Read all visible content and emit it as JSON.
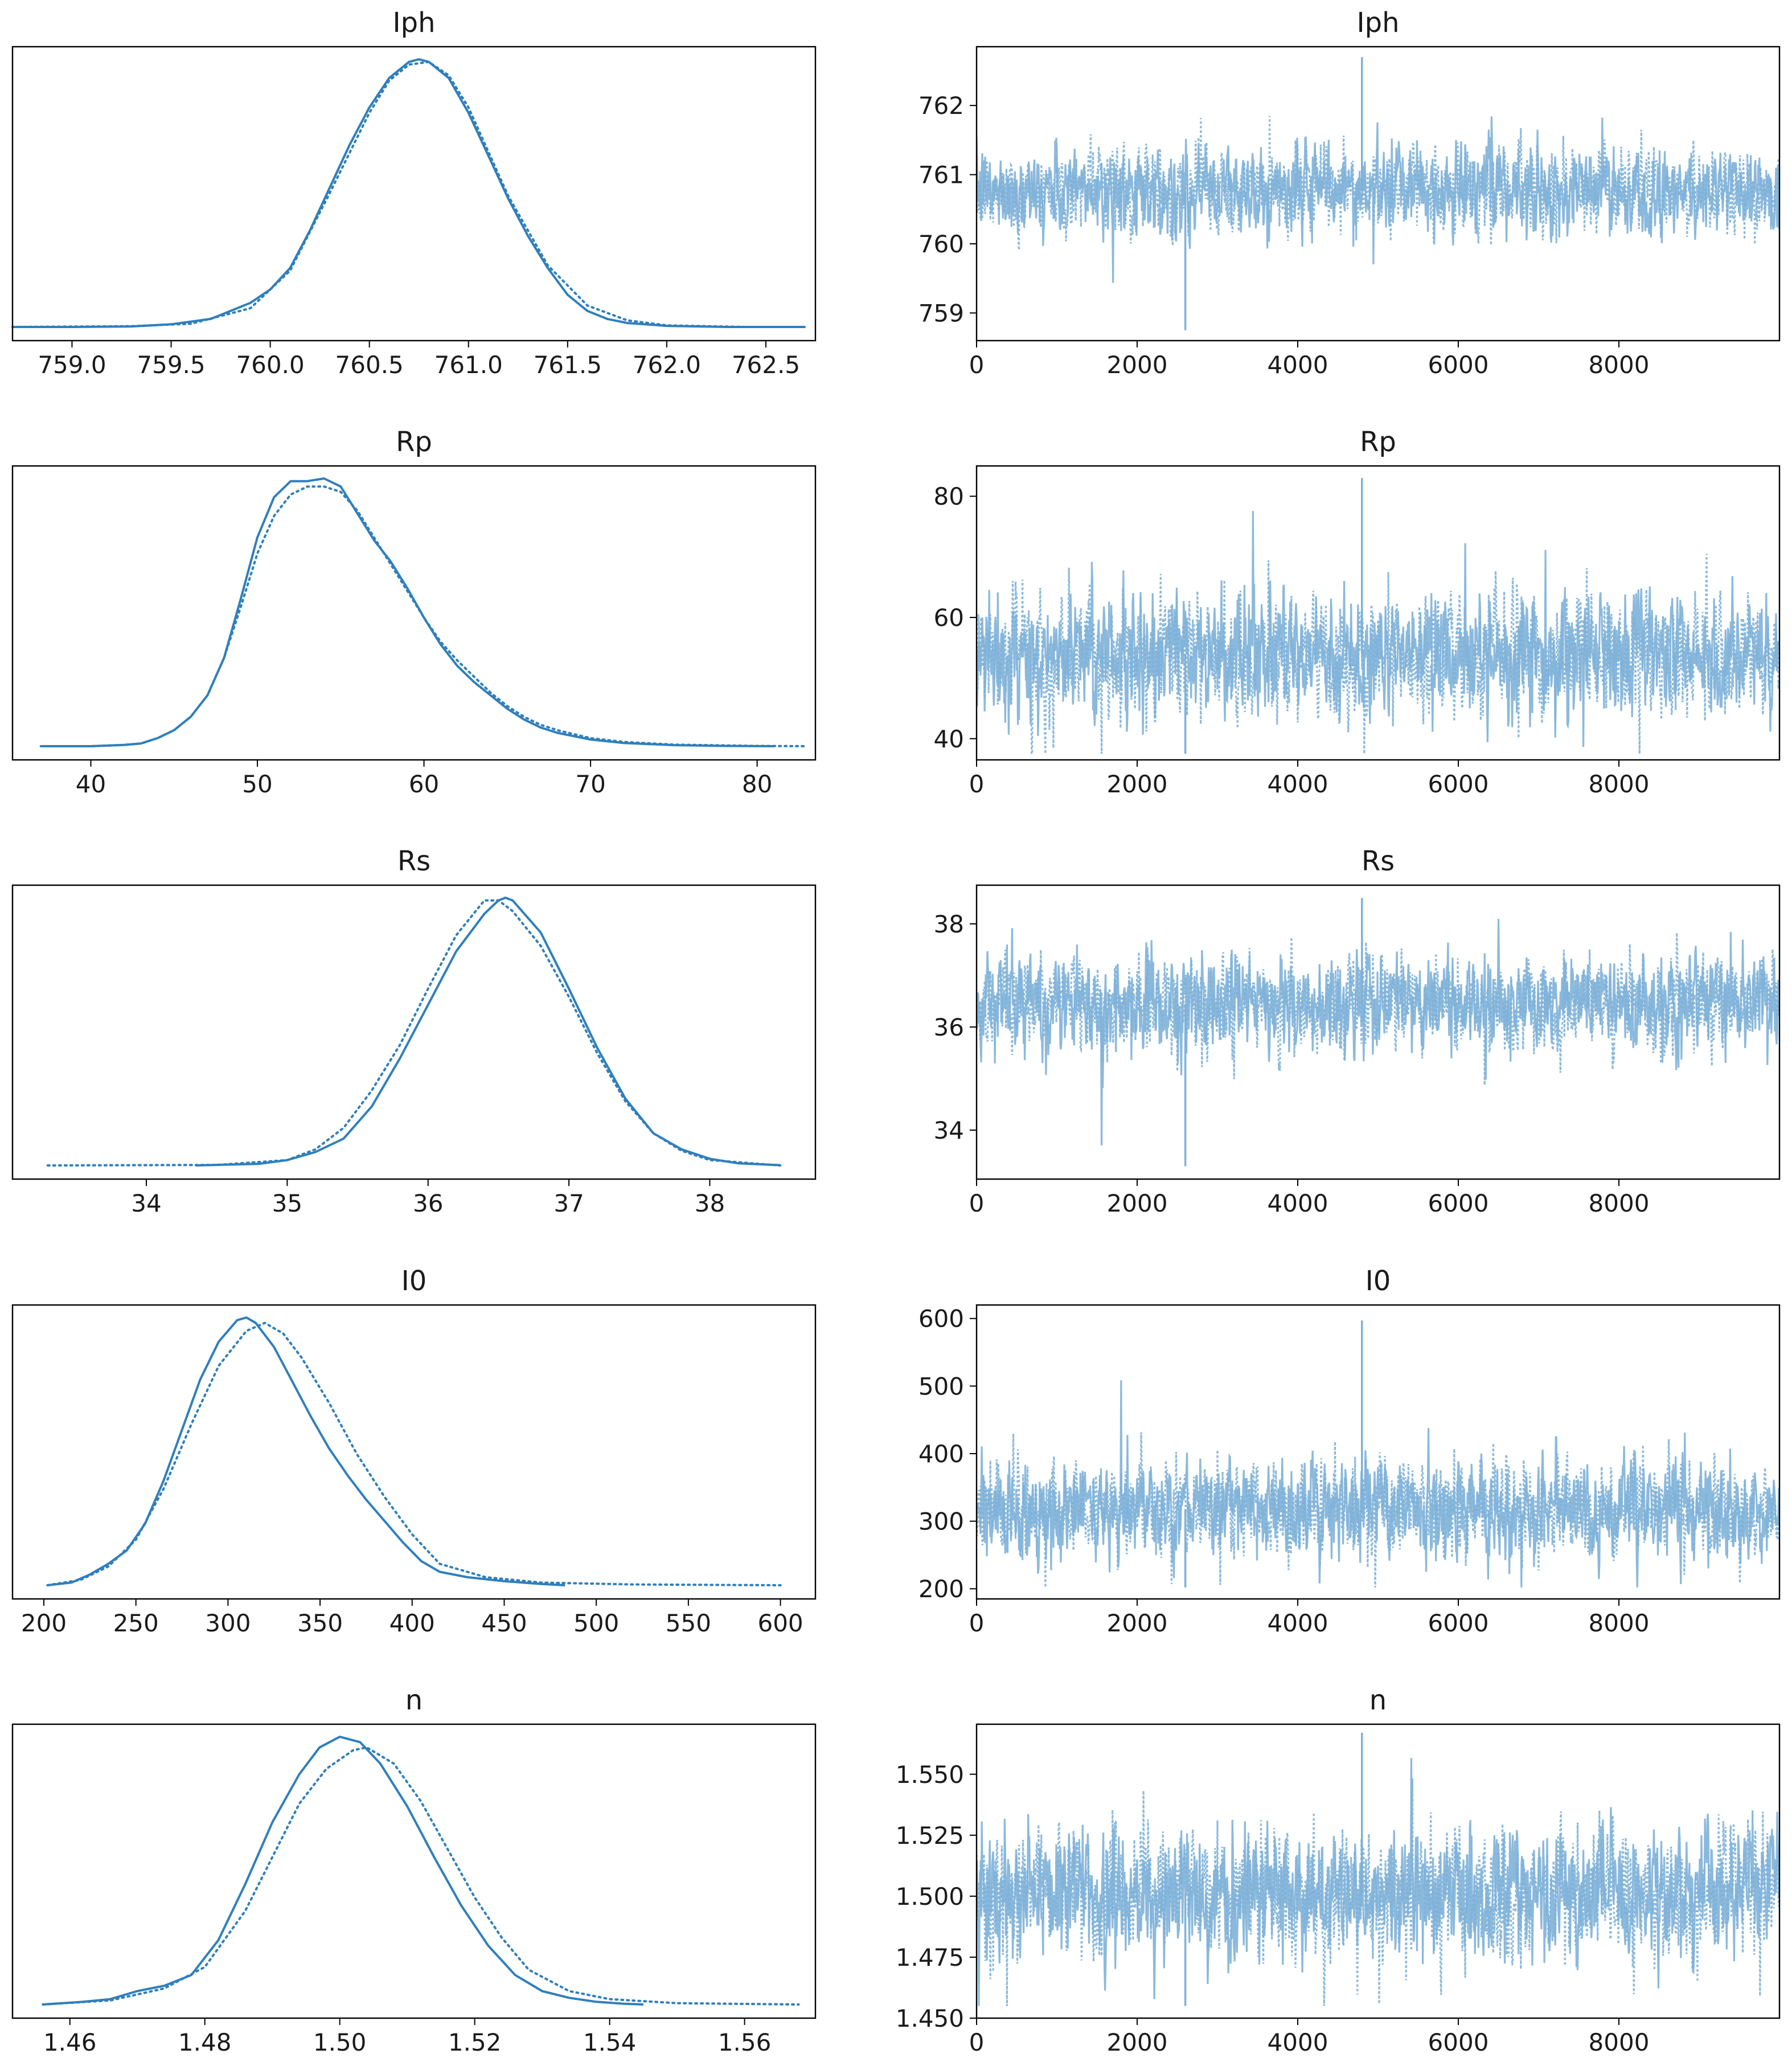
{
  "palette": {
    "kde": "#2f7fbc",
    "trace": "#7eb1d8",
    "axis": "#000000"
  },
  "chart_data": [
    {
      "type": "line",
      "panel": "kde",
      "title": "Iph",
      "xlim": [
        758.7,
        762.75
      ],
      "xticks": [
        "759.0",
        "759.5",
        "760.0",
        "760.5",
        "761.0",
        "761.5",
        "762.0",
        "762.5"
      ],
      "xtick_values": [
        759.0,
        759.5,
        760.0,
        760.5,
        761.0,
        761.5,
        762.0,
        762.5
      ],
      "series": [
        {
          "style": "solid",
          "x": [
            758.7,
            759.0,
            759.3,
            759.5,
            759.7,
            759.9,
            760.0,
            760.1,
            760.2,
            760.3,
            760.4,
            760.5,
            760.6,
            760.7,
            760.75,
            760.8,
            760.9,
            761.0,
            761.1,
            761.2,
            761.3,
            761.4,
            761.5,
            761.6,
            761.7,
            761.8,
            762.0,
            762.3,
            762.7
          ],
          "y": [
            0.0,
            0.0,
            0.002,
            0.01,
            0.03,
            0.09,
            0.14,
            0.22,
            0.36,
            0.52,
            0.68,
            0.82,
            0.93,
            0.99,
            1.0,
            0.99,
            0.93,
            0.8,
            0.64,
            0.48,
            0.34,
            0.22,
            0.12,
            0.06,
            0.03,
            0.015,
            0.004,
            0.0,
            0.0
          ]
        },
        {
          "style": "dotted",
          "x": [
            758.7,
            759.3,
            759.6,
            759.9,
            760.1,
            760.3,
            760.5,
            760.6,
            760.7,
            760.8,
            760.9,
            761.0,
            761.2,
            761.4,
            761.6,
            761.8,
            762.0,
            762.4,
            762.7
          ],
          "y": [
            0.0,
            0.003,
            0.012,
            0.07,
            0.21,
            0.5,
            0.8,
            0.92,
            0.98,
            0.99,
            0.94,
            0.82,
            0.49,
            0.23,
            0.08,
            0.025,
            0.006,
            0.0,
            0.0
          ]
        }
      ]
    },
    {
      "type": "line",
      "panel": "trace",
      "title": "Iph",
      "xlim": [
        0,
        10000
      ],
      "ylim": [
        758.6,
        762.85
      ],
      "xticks": [
        "0",
        "2000",
        "4000",
        "6000",
        "8000"
      ],
      "xtick_values": [
        0,
        2000,
        4000,
        6000,
        8000
      ],
      "yticks": [
        "759",
        "760",
        "761",
        "762"
      ],
      "ytick_values": [
        759,
        760,
        761,
        762
      ],
      "center": 760.77,
      "sd": 0.3,
      "min": 758.75,
      "max": 762.7,
      "draws": 10000
    },
    {
      "type": "line",
      "panel": "kde",
      "title": "Rp",
      "xlim": [
        35.3,
        83.5
      ],
      "xticks": [
        "40",
        "50",
        "60",
        "70",
        "80"
      ],
      "xtick_values": [
        40,
        50,
        60,
        70,
        80
      ],
      "series": [
        {
          "style": "solid",
          "x": [
            37,
            40,
            42,
            43,
            44,
            45,
            46,
            47,
            48,
            49,
            50,
            51,
            52,
            53,
            54,
            55,
            56,
            57,
            58,
            59,
            60,
            61,
            62,
            63,
            64,
            65,
            66,
            67,
            68,
            70,
            72,
            75,
            78,
            81
          ],
          "y": [
            0.0,
            0.0,
            0.005,
            0.01,
            0.03,
            0.06,
            0.11,
            0.19,
            0.33,
            0.55,
            0.78,
            0.93,
            0.99,
            0.99,
            1.0,
            0.97,
            0.87,
            0.77,
            0.69,
            0.59,
            0.48,
            0.38,
            0.3,
            0.24,
            0.19,
            0.14,
            0.1,
            0.07,
            0.05,
            0.025,
            0.012,
            0.004,
            0.001,
            0.0
          ]
        },
        {
          "style": "dotted",
          "x": [
            37,
            40,
            42,
            43,
            44,
            45,
            46,
            47,
            48,
            49,
            50,
            51,
            52,
            53,
            54,
            55,
            56,
            57,
            58,
            59,
            60,
            61,
            62,
            63,
            64,
            65,
            66,
            67,
            68,
            70,
            72,
            75,
            80,
            83
          ],
          "y": [
            0.0,
            0.0,
            0.005,
            0.01,
            0.03,
            0.06,
            0.11,
            0.19,
            0.33,
            0.52,
            0.72,
            0.86,
            0.94,
            0.97,
            0.97,
            0.95,
            0.88,
            0.78,
            0.68,
            0.58,
            0.48,
            0.39,
            0.32,
            0.26,
            0.2,
            0.15,
            0.11,
            0.08,
            0.06,
            0.03,
            0.016,
            0.006,
            0.001,
            0.0
          ]
        }
      ]
    },
    {
      "type": "line",
      "panel": "trace",
      "title": "Rp",
      "xlim": [
        0,
        10000
      ],
      "ylim": [
        36.5,
        85.0
      ],
      "xticks": [
        "0",
        "2000",
        "4000",
        "6000",
        "8000"
      ],
      "xtick_values": [
        0,
        2000,
        4000,
        6000,
        8000
      ],
      "yticks": [
        "40",
        "60",
        "80"
      ],
      "ytick_values": [
        40,
        60,
        80
      ],
      "center": 54.0,
      "sd": 4.8,
      "min": 37.5,
      "max": 83.0,
      "draws": 10000
    },
    {
      "type": "line",
      "panel": "kde",
      "title": "Rs",
      "xlim": [
        33.05,
        38.75
      ],
      "xticks": [
        "34",
        "35",
        "36",
        "37",
        "38"
      ],
      "xtick_values": [
        34,
        35,
        36,
        37,
        38
      ],
      "series": [
        {
          "style": "solid",
          "x": [
            34.35,
            34.8,
            35.0,
            35.2,
            35.4,
            35.6,
            35.8,
            36.0,
            36.2,
            36.4,
            36.5,
            36.55,
            36.6,
            36.8,
            37.0,
            37.2,
            37.4,
            37.6,
            37.8,
            38.0,
            38.2,
            38.5
          ],
          "y": [
            0.0,
            0.006,
            0.02,
            0.05,
            0.1,
            0.22,
            0.4,
            0.6,
            0.8,
            0.94,
            0.99,
            1.0,
            0.99,
            0.87,
            0.66,
            0.44,
            0.25,
            0.12,
            0.06,
            0.025,
            0.008,
            0.001
          ]
        },
        {
          "style": "dotted",
          "x": [
            33.3,
            34.5,
            35.0,
            35.2,
            35.4,
            35.6,
            35.8,
            36.0,
            36.2,
            36.4,
            36.5,
            36.6,
            36.8,
            37.0,
            37.2,
            37.4,
            37.6,
            37.8,
            38.0,
            38.5
          ],
          "y": [
            0.0,
            0.002,
            0.02,
            0.06,
            0.14,
            0.28,
            0.45,
            0.66,
            0.86,
            0.99,
            0.99,
            0.95,
            0.82,
            0.63,
            0.42,
            0.24,
            0.12,
            0.055,
            0.02,
            0.0
          ]
        }
      ]
    },
    {
      "type": "line",
      "panel": "trace",
      "title": "Rs",
      "xlim": [
        0,
        10000
      ],
      "ylim": [
        33.05,
        38.75
      ],
      "xticks": [
        "0",
        "2000",
        "4000",
        "6000",
        "8000"
      ],
      "xtick_values": [
        0,
        2000,
        4000,
        6000,
        8000
      ],
      "yticks": [
        "34",
        "36",
        "38"
      ],
      "ytick_values": [
        34,
        36,
        38
      ],
      "center": 36.45,
      "sd": 0.45,
      "min": 33.3,
      "max": 38.5,
      "draws": 10000
    },
    {
      "type": "line",
      "panel": "kde",
      "title": "I0",
      "xlim": [
        183,
        619
      ],
      "xticks": [
        "200",
        "250",
        "300",
        "350",
        "400",
        "450",
        "500",
        "550",
        "600"
      ],
      "xtick_values": [
        200,
        250,
        300,
        350,
        400,
        450,
        500,
        550,
        600
      ],
      "series": [
        {
          "style": "solid",
          "x": [
            202,
            215,
            225,
            235,
            245,
            255,
            265,
            275,
            285,
            295,
            305,
            310,
            315,
            325,
            335,
            345,
            355,
            365,
            375,
            385,
            395,
            405,
            415,
            430,
            450,
            470,
            483
          ],
          "y": [
            0.0,
            0.01,
            0.04,
            0.08,
            0.13,
            0.23,
            0.39,
            0.58,
            0.77,
            0.91,
            0.99,
            1.0,
            0.98,
            0.89,
            0.76,
            0.63,
            0.51,
            0.41,
            0.32,
            0.24,
            0.16,
            0.09,
            0.05,
            0.03,
            0.015,
            0.005,
            0.0
          ]
        },
        {
          "style": "dotted",
          "x": [
            202,
            220,
            235,
            250,
            265,
            280,
            295,
            310,
            320,
            330,
            340,
            355,
            370,
            385,
            400,
            415,
            440,
            470,
            520,
            600
          ],
          "y": [
            0.0,
            0.02,
            0.07,
            0.17,
            0.36,
            0.6,
            0.82,
            0.95,
            0.98,
            0.94,
            0.85,
            0.68,
            0.49,
            0.33,
            0.19,
            0.08,
            0.03,
            0.01,
            0.003,
            0.0
          ]
        }
      ]
    },
    {
      "type": "line",
      "panel": "trace",
      "title": "I0",
      "xlim": [
        0,
        10000
      ],
      "ylim": [
        185,
        620
      ],
      "xticks": [
        "0",
        "2000",
        "4000",
        "6000",
        "8000"
      ],
      "xtick_values": [
        0,
        2000,
        4000,
        6000,
        8000
      ],
      "yticks": [
        "200",
        "300",
        "400",
        "500",
        "600"
      ],
      "ytick_values": [
        200,
        300,
        400,
        500,
        600
      ],
      "center": 318,
      "sd": 35,
      "min": 202,
      "max": 597,
      "draws": 10000
    },
    {
      "type": "line",
      "panel": "kde",
      "title": "n",
      "xlim": [
        1.4515,
        1.5705
      ],
      "xticks": [
        "1.46",
        "1.48",
        "1.50",
        "1.52",
        "1.54",
        "1.56"
      ],
      "xtick_values": [
        1.46,
        1.48,
        1.5,
        1.52,
        1.54,
        1.56
      ],
      "series": [
        {
          "style": "solid",
          "x": [
            1.456,
            1.462,
            1.466,
            1.47,
            1.474,
            1.478,
            1.482,
            1.486,
            1.49,
            1.494,
            1.497,
            1.5,
            1.503,
            1.506,
            1.51,
            1.514,
            1.518,
            1.522,
            1.526,
            1.53,
            1.534,
            1.538,
            1.542,
            1.545
          ],
          "y": [
            0.0,
            0.01,
            0.02,
            0.05,
            0.07,
            0.11,
            0.24,
            0.45,
            0.68,
            0.86,
            0.96,
            1.0,
            0.98,
            0.9,
            0.74,
            0.55,
            0.37,
            0.22,
            0.11,
            0.05,
            0.025,
            0.01,
            0.003,
            0.0
          ]
        },
        {
          "style": "dotted",
          "x": [
            1.456,
            1.466,
            1.474,
            1.48,
            1.486,
            1.49,
            1.494,
            1.498,
            1.502,
            1.504,
            1.508,
            1.512,
            1.516,
            1.52,
            1.524,
            1.528,
            1.534,
            1.54,
            1.55,
            1.568
          ],
          "y": [
            0.0,
            0.015,
            0.06,
            0.14,
            0.35,
            0.55,
            0.75,
            0.88,
            0.95,
            0.96,
            0.9,
            0.76,
            0.58,
            0.4,
            0.25,
            0.13,
            0.05,
            0.02,
            0.005,
            0.0
          ]
        }
      ]
    },
    {
      "type": "line",
      "panel": "trace",
      "title": "n",
      "xlim": [
        0,
        10000
      ],
      "ylim": [
        1.45,
        1.5705
      ],
      "xticks": [
        "0",
        "2000",
        "4000",
        "6000",
        "8000"
      ],
      "xtick_values": [
        0,
        2000,
        4000,
        6000,
        8000
      ],
      "yticks": [
        "1.450",
        "1.475",
        "1.500",
        "1.525",
        "1.550"
      ],
      "ytick_values": [
        1.45,
        1.475,
        1.5,
        1.525,
        1.55
      ],
      "center": 1.501,
      "sd": 0.0125,
      "min": 1.455,
      "max": 1.567,
      "draws": 10000
    }
  ]
}
